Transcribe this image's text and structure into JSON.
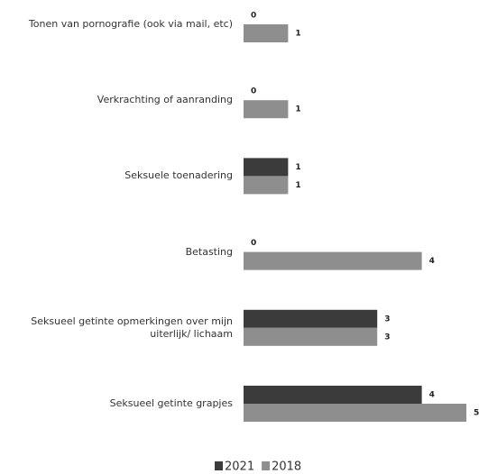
{
  "chart_data": {
    "type": "barh",
    "categories": [
      "Tonen van pornografie (ook via mail, etc)",
      "Verkrachting of aanranding",
      "Seksuele toenadering",
      "Betasting",
      "Seksueel getinte opmerkingen over mijn uiterlijk/ lichaam",
      "Seksueel getinte grapjes"
    ],
    "series": [
      {
        "name": "2021",
        "color": "#3b3b3b",
        "values": [
          0,
          0,
          1,
          0,
          3,
          4
        ]
      },
      {
        "name": "2018",
        "color": "#8e8e8e",
        "values": [
          1,
          1,
          1,
          4,
          3,
          5
        ]
      }
    ],
    "xlim": [
      0,
      5
    ],
    "legend": "bottom"
  }
}
